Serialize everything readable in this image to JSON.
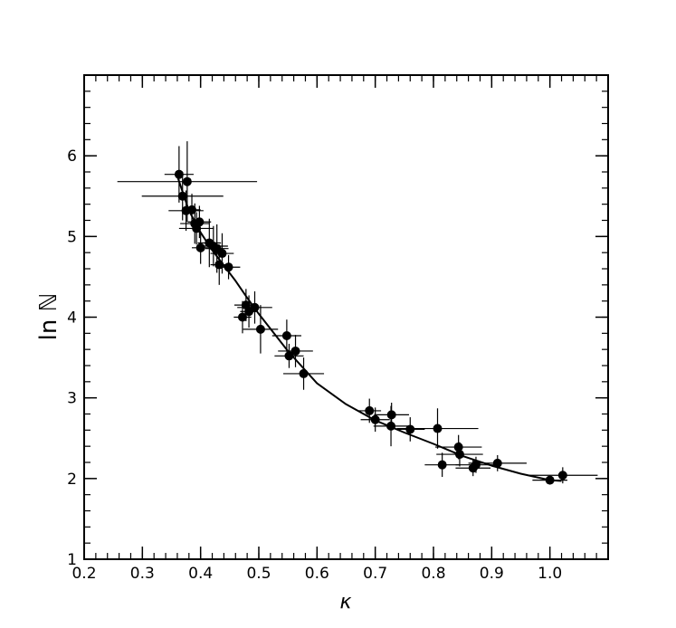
{
  "chart_data": {
    "type": "scatter",
    "title": "",
    "xlabel": "κ",
    "ylabel": "ln ℕ",
    "xlim": [
      0.2,
      1.1
    ],
    "ylim": [
      1,
      7
    ],
    "xticks": [
      0.2,
      0.3,
      0.4,
      0.5,
      0.6,
      0.7,
      0.8,
      0.9,
      1.0
    ],
    "yticks": [
      1,
      2,
      3,
      4,
      5,
      6
    ],
    "xtick_labels": [
      "0.2",
      "0.3",
      "0.4",
      "0.5",
      "0.6",
      "0.7",
      "0.8",
      "0.9",
      "1.0"
    ],
    "ytick_labels": [
      "1",
      "2",
      "3",
      "4",
      "5",
      "6"
    ],
    "grid": false,
    "points": [
      {
        "x": 0.363,
        "y": 5.77,
        "xerr": 0.025,
        "yerr": 0.35
      },
      {
        "x": 0.377,
        "y": 5.68,
        "xerr": 0.12,
        "yerr": 0.5
      },
      {
        "x": 0.369,
        "y": 5.5,
        "xerr": 0.07,
        "yerr": 0.3
      },
      {
        "x": 0.375,
        "y": 5.32,
        "xerr": 0.03,
        "yerr": 0.25
      },
      {
        "x": 0.385,
        "y": 5.33,
        "xerr": 0.015,
        "yerr": 0.2
      },
      {
        "x": 0.39,
        "y": 5.16,
        "xerr": 0.025,
        "yerr": 0.25
      },
      {
        "x": 0.393,
        "y": 5.1,
        "xerr": 0.03,
        "yerr": 0.2
      },
      {
        "x": 0.398,
        "y": 5.18,
        "xerr": 0.02,
        "yerr": 0.2
      },
      {
        "x": 0.4,
        "y": 4.86,
        "xerr": 0.015,
        "yerr": 0.2
      },
      {
        "x": 0.415,
        "y": 4.92,
        "xerr": 0.02,
        "yerr": 0.3
      },
      {
        "x": 0.422,
        "y": 4.88,
        "xerr": 0.025,
        "yerr": 0.25
      },
      {
        "x": 0.428,
        "y": 4.85,
        "xerr": 0.02,
        "yerr": 0.3
      },
      {
        "x": 0.432,
        "y": 4.65,
        "xerr": 0.015,
        "yerr": 0.25
      },
      {
        "x": 0.437,
        "y": 4.79,
        "xerr": 0.02,
        "yerr": 0.25
      },
      {
        "x": 0.448,
        "y": 4.62,
        "xerr": 0.02,
        "yerr": 0.15
      },
      {
        "x": 0.472,
        "y": 4.0,
        "xerr": 0.015,
        "yerr": 0.2
      },
      {
        "x": 0.478,
        "y": 4.15,
        "xerr": 0.02,
        "yerr": 0.2
      },
      {
        "x": 0.483,
        "y": 4.07,
        "xerr": 0.015,
        "yerr": 0.2
      },
      {
        "x": 0.493,
        "y": 4.12,
        "xerr": 0.03,
        "yerr": 0.2
      },
      {
        "x": 0.503,
        "y": 3.85,
        "xerr": 0.03,
        "yerr": 0.3
      },
      {
        "x": 0.548,
        "y": 3.77,
        "xerr": 0.025,
        "yerr": 0.2
      },
      {
        "x": 0.552,
        "y": 3.52,
        "xerr": 0.025,
        "yerr": 0.15
      },
      {
        "x": 0.563,
        "y": 3.58,
        "xerr": 0.03,
        "yerr": 0.2
      },
      {
        "x": 0.577,
        "y": 3.3,
        "xerr": 0.035,
        "yerr": 0.2
      },
      {
        "x": 0.69,
        "y": 2.84,
        "xerr": 0.02,
        "yerr": 0.15
      },
      {
        "x": 0.7,
        "y": 2.73,
        "xerr": 0.025,
        "yerr": 0.15
      },
      {
        "x": 0.727,
        "y": 2.65,
        "xerr": 0.03,
        "yerr": 0.25
      },
      {
        "x": 0.728,
        "y": 2.79,
        "xerr": 0.03,
        "yerr": 0.15
      },
      {
        "x": 0.76,
        "y": 2.61,
        "xerr": 0.025,
        "yerr": 0.15
      },
      {
        "x": 0.807,
        "y": 2.62,
        "xerr": 0.07,
        "yerr": 0.25
      },
      {
        "x": 0.815,
        "y": 2.17,
        "xerr": 0.03,
        "yerr": 0.15
      },
      {
        "x": 0.843,
        "y": 2.39,
        "xerr": 0.04,
        "yerr": 0.15
      },
      {
        "x": 0.845,
        "y": 2.3,
        "xerr": 0.04,
        "yerr": 0.15
      },
      {
        "x": 0.868,
        "y": 2.13,
        "xerr": 0.03,
        "yerr": 0.1
      },
      {
        "x": 0.873,
        "y": 2.17,
        "xerr": 0.035,
        "yerr": 0.1
      },
      {
        "x": 0.91,
        "y": 2.19,
        "xerr": 0.05,
        "yerr": 0.1
      },
      {
        "x": 1.0,
        "y": 1.98,
        "xerr": 0.03,
        "yerr": 0.05
      },
      {
        "x": 1.022,
        "y": 2.04,
        "xerr": 0.06,
        "yerr": 0.1
      }
    ],
    "fit_curve": {
      "x": [
        0.36,
        0.38,
        0.4,
        0.42,
        0.44,
        0.46,
        0.48,
        0.5,
        0.55,
        0.6,
        0.65,
        0.7,
        0.75,
        0.8,
        0.85,
        0.9,
        0.95,
        1.0,
        1.02
      ],
      "y": [
        5.75,
        5.32,
        5.05,
        4.83,
        4.64,
        4.45,
        4.24,
        4.04,
        3.58,
        3.18,
        2.92,
        2.72,
        2.57,
        2.43,
        2.28,
        2.16,
        2.06,
        1.98,
        1.97
      ]
    },
    "colors": {
      "marker": "#000000",
      "line": "#000000",
      "background": "#ffffff"
    }
  }
}
